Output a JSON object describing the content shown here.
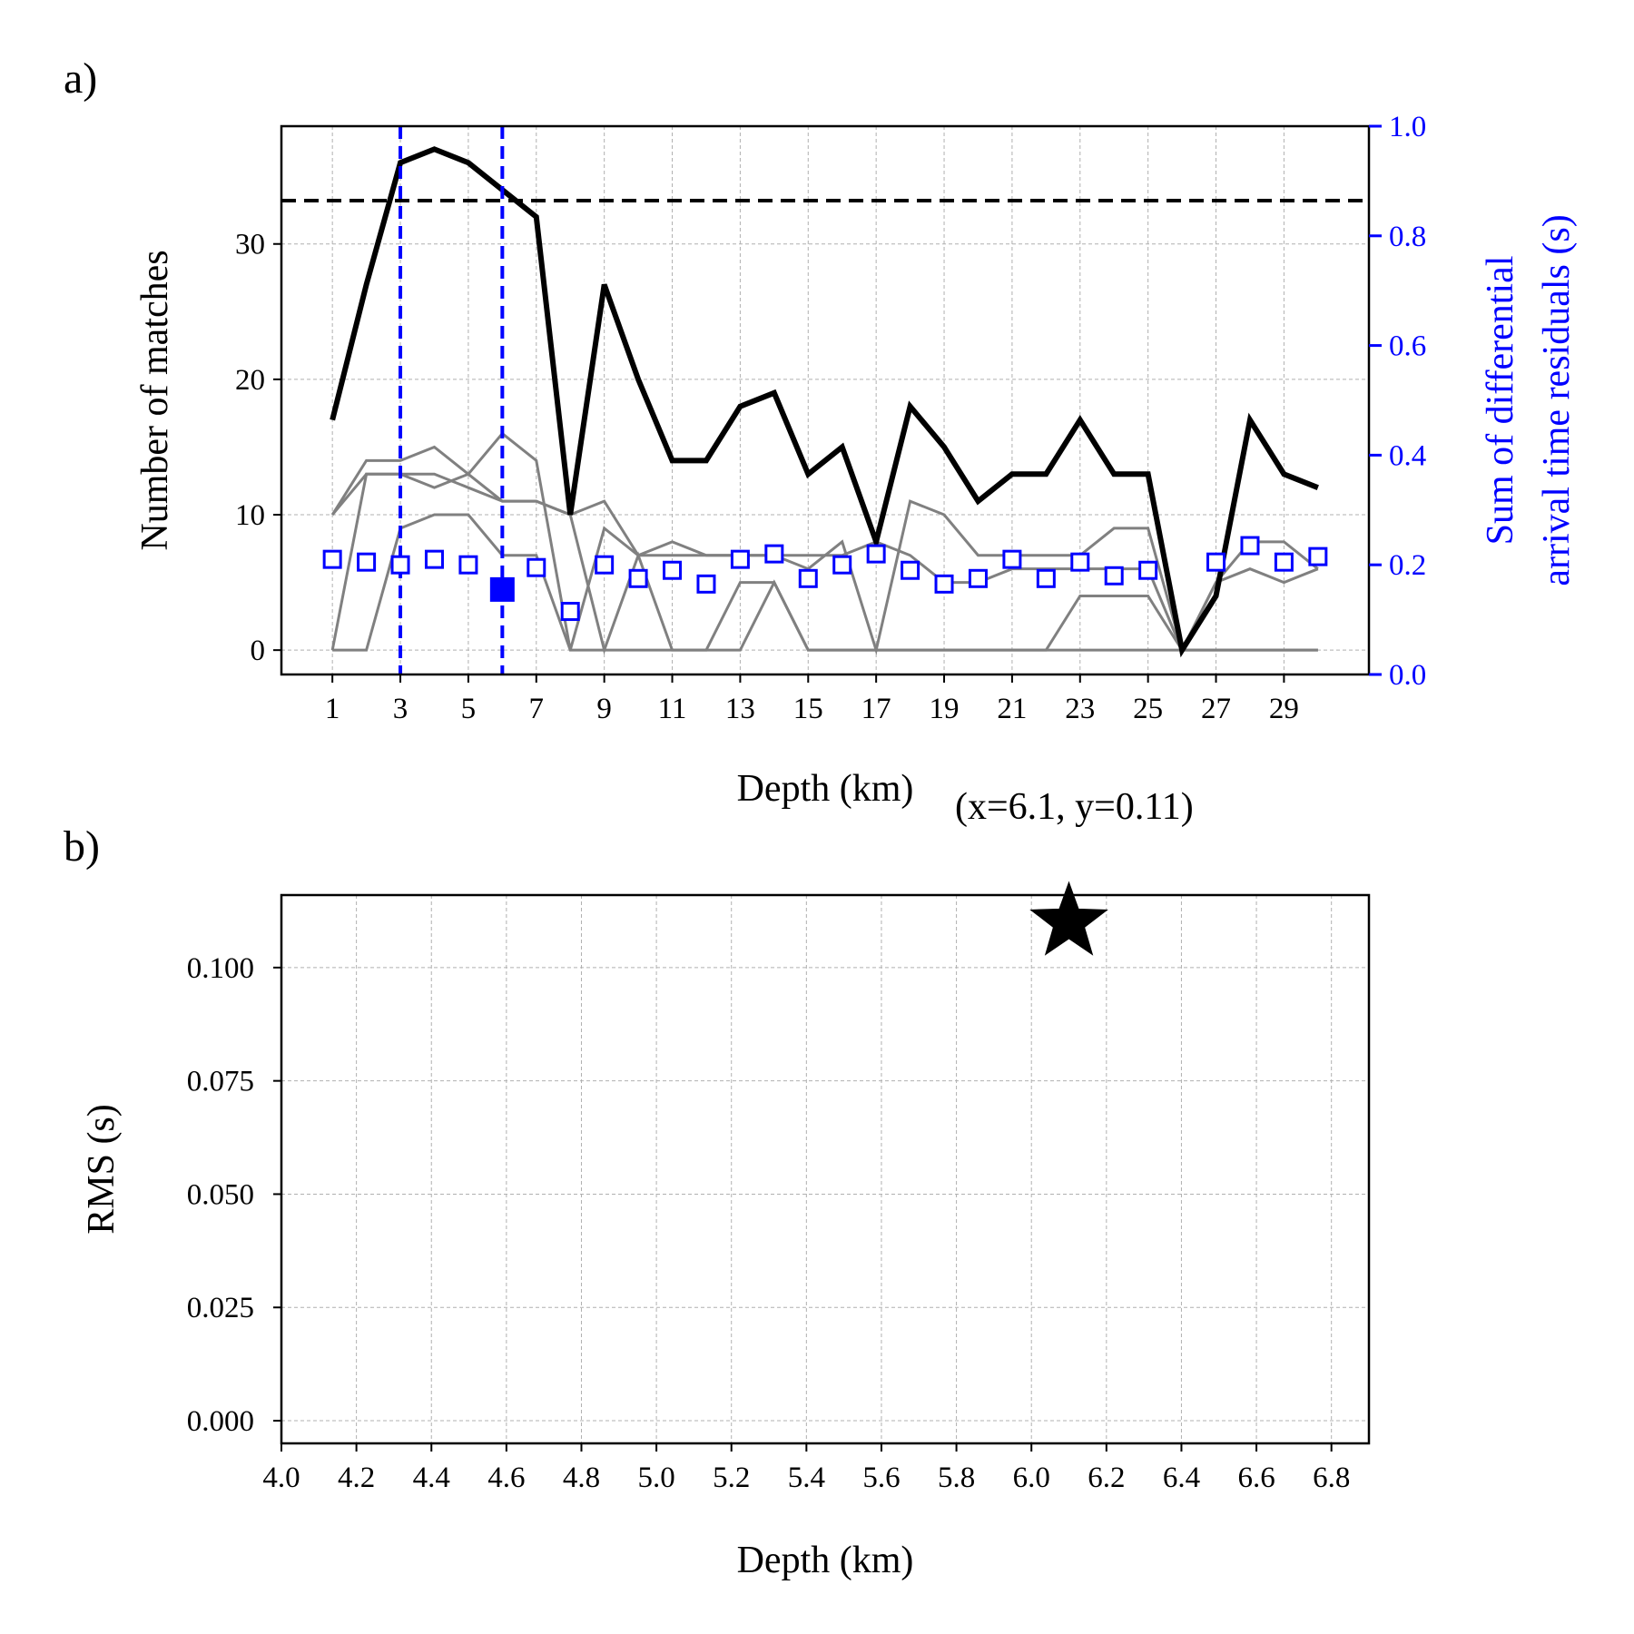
{
  "chart_data": [
    {
      "panel": "a)",
      "type": "line",
      "xlabel": "Depth (km)",
      "ylabel": "Number of matches",
      "y2label_line1": "Sum of differential",
      "y2label_line2": "arrival time residuals (s)",
      "annotation": "(x=6.1, y=0.11)",
      "xlim": [
        -0.5,
        31.5
      ],
      "ylim": [
        -1.8,
        38.7
      ],
      "y2lim": [
        0.0,
        1.0
      ],
      "xticks": [
        1,
        3,
        5,
        7,
        9,
        11,
        13,
        15,
        17,
        19,
        21,
        23,
        25,
        27,
        29
      ],
      "yticks": [
        0,
        10,
        20,
        30
      ],
      "y2ticks": [
        "0.0",
        "0.2",
        "0.4",
        "0.6",
        "0.8",
        "1.0"
      ],
      "grid": true,
      "x": [
        1,
        2,
        3,
        4,
        5,
        6,
        7,
        8,
        9,
        10,
        11,
        12,
        13,
        14,
        15,
        16,
        17,
        18,
        19,
        20,
        21,
        22,
        23,
        24,
        25,
        26,
        27,
        28,
        29,
        30
      ],
      "series": [
        {
          "role": "total",
          "color": "#000000",
          "values": [
            17,
            27,
            36,
            37,
            36,
            34,
            32,
            10,
            27,
            20,
            14,
            14,
            18,
            19,
            13,
            15,
            8,
            18,
            15,
            11,
            13,
            13,
            17,
            13,
            13,
            0,
            4,
            17,
            13,
            12
          ]
        },
        {
          "role": "component",
          "color": "#808080",
          "values": [
            10,
            13,
            13,
            12,
            13,
            16,
            14,
            0,
            9,
            7,
            8,
            7,
            7,
            7,
            7,
            7,
            8,
            7,
            5,
            5,
            6,
            6,
            6,
            6,
            6,
            0,
            5,
            8,
            8,
            6
          ]
        },
        {
          "role": "component",
          "color": "#808080",
          "values": [
            10,
            14,
            14,
            15,
            13,
            11,
            11,
            10,
            11,
            7,
            7,
            7,
            7,
            7,
            6,
            8,
            0,
            11,
            10,
            7,
            7,
            7,
            7,
            9,
            9,
            0,
            5,
            6,
            5,
            6
          ]
        },
        {
          "role": "component",
          "color": "#808080",
          "values": [
            0,
            13,
            13,
            13,
            12,
            11,
            11,
            10,
            0,
            7,
            0,
            0,
            0,
            5,
            0,
            0,
            0,
            0,
            0,
            0,
            0,
            0,
            4,
            4,
            4,
            0,
            0,
            0,
            0,
            0
          ]
        },
        {
          "role": "component",
          "color": "#808080",
          "values": [
            0,
            0,
            9,
            10,
            10,
            7,
            7,
            0,
            0,
            0,
            0,
            0,
            5,
            5,
            0,
            0,
            0,
            0,
            0,
            0,
            0,
            0,
            0,
            0,
            0,
            0,
            0,
            0,
            0,
            0
          ]
        }
      ],
      "residuals": {
        "axis": "right",
        "color": "#0000ff",
        "marker": "open-square",
        "values": [
          0.21,
          0.205,
          0.2,
          0.21,
          0.2,
          0.155,
          0.195,
          0.115,
          0.2,
          0.175,
          0.19,
          0.165,
          0.21,
          0.22,
          0.175,
          0.2,
          0.22,
          0.19,
          0.165,
          0.175,
          0.21,
          0.175,
          0.205,
          0.18,
          0.19,
          null,
          0.205,
          0.235,
          0.205,
          0.215
        ],
        "highlight": {
          "x": 6,
          "value": 0.155
        }
      },
      "threshold_y": 33.2,
      "vlines_x": [
        3,
        6
      ]
    },
    {
      "panel": "b)",
      "type": "scatter",
      "xlabel": "Depth (km)",
      "ylabel": "RMS (s)",
      "xlim": [
        4.0,
        6.9
      ],
      "ylim": [
        -0.005,
        0.116
      ],
      "xticks": [
        "4.0",
        "4.2",
        "4.4",
        "4.6",
        "4.8",
        "5.0",
        "5.2",
        "5.4",
        "5.6",
        "5.8",
        "6.0",
        "6.2",
        "6.4",
        "6.6",
        "6.8"
      ],
      "yticks": [
        "0.000",
        "0.025",
        "0.050",
        "0.075",
        "0.100"
      ],
      "grid": true,
      "points": [
        {
          "x": 6.1,
          "y": 0.11,
          "marker": "star",
          "color": "#000000"
        }
      ]
    }
  ]
}
